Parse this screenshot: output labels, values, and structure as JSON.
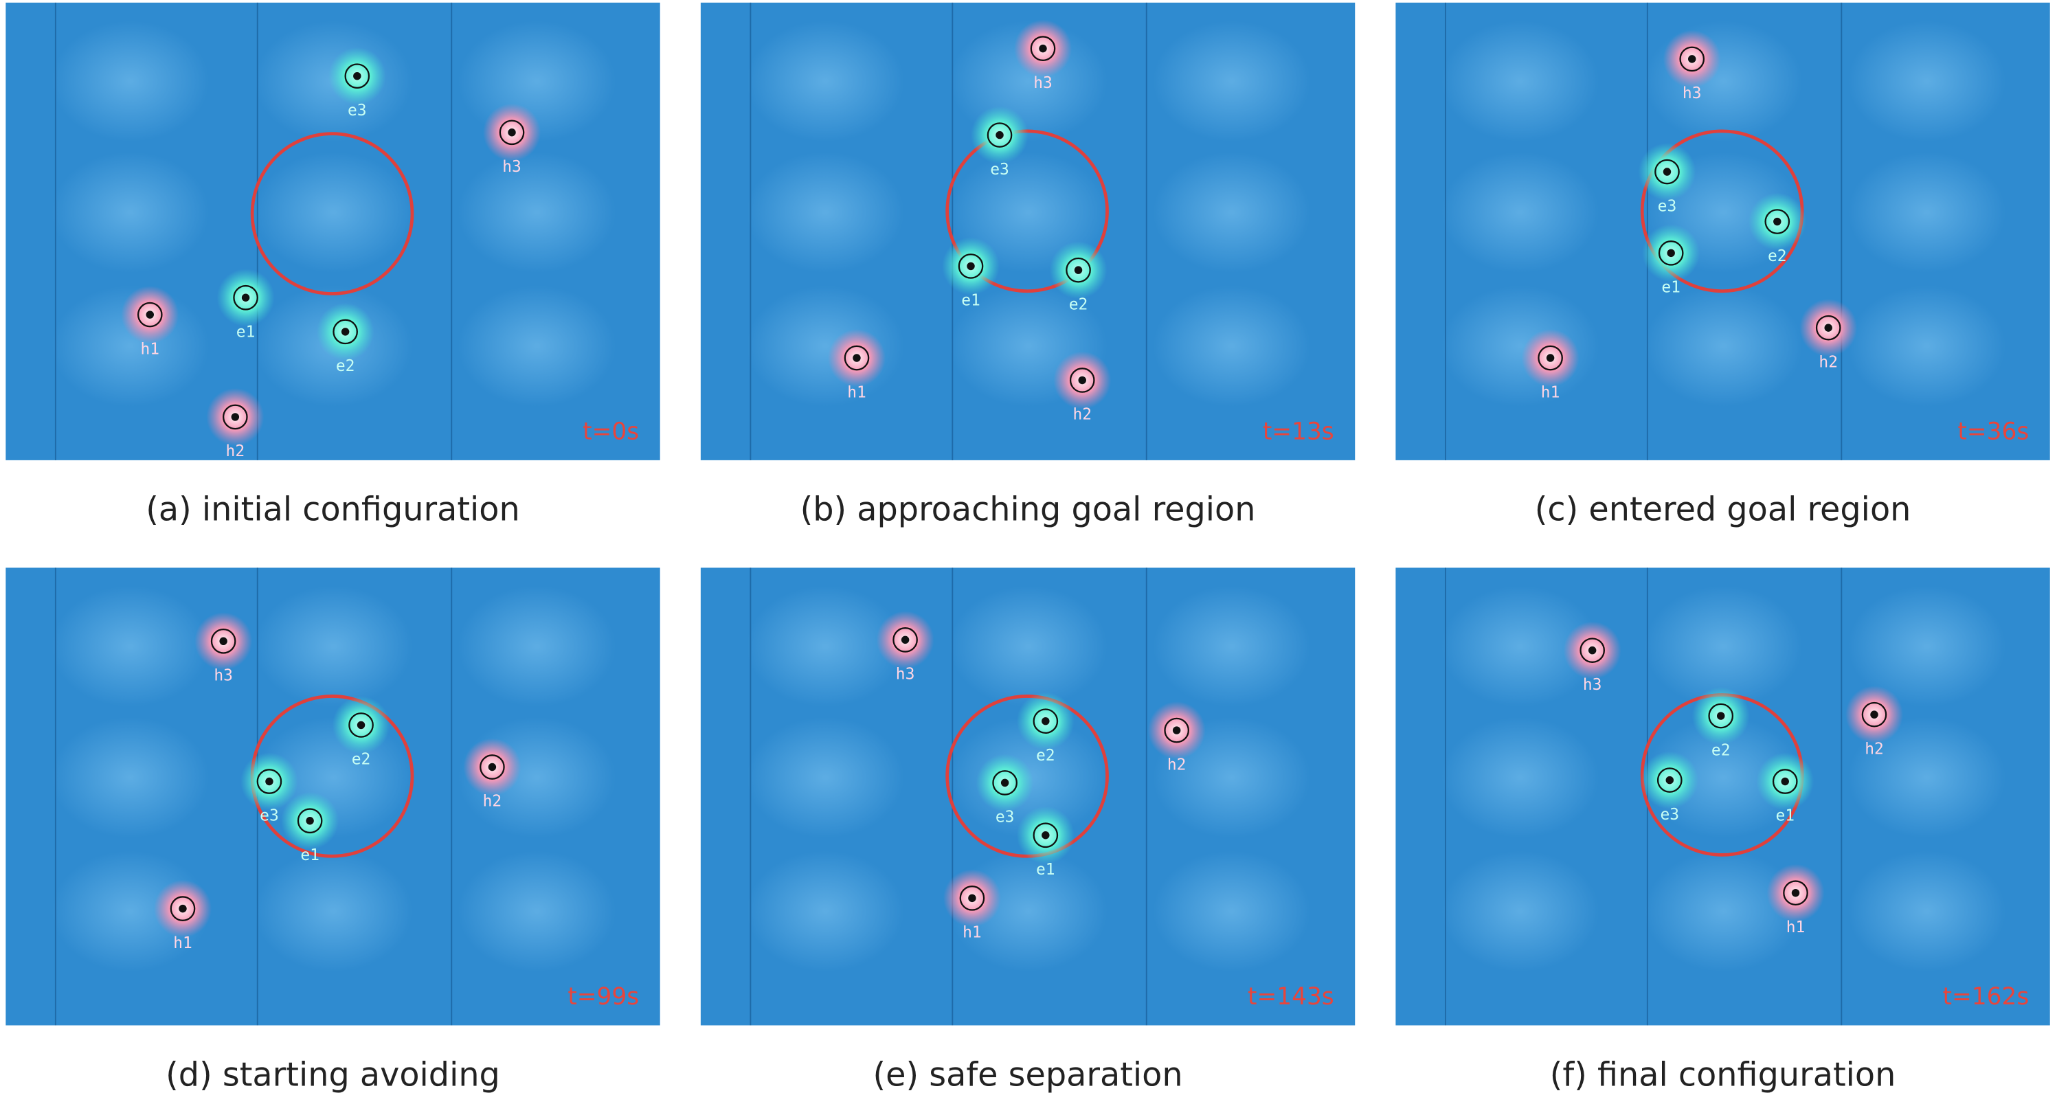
{
  "panels": [
    {
      "caption": "(a) initial configuration",
      "time": "t=0s",
      "robots": [
        "e1",
        "e2",
        "e3",
        "h1",
        "h2",
        "h3"
      ]
    },
    {
      "caption": "(b) approaching goal region",
      "time": "t=13s",
      "robots": [
        "e1",
        "e2",
        "e3",
        "h1",
        "h2",
        "h3"
      ]
    },
    {
      "caption": "(c) entered goal region",
      "time": "t=36s",
      "robots": [
        "e1",
        "e2",
        "e3",
        "h1",
        "h2",
        "h3"
      ]
    },
    {
      "caption": "(d) starting avoiding",
      "time": "t=99s",
      "robots": [
        "e1",
        "e2",
        "e3",
        "h1",
        "h2",
        "h3"
      ]
    },
    {
      "caption": "(e) safe separation",
      "time": "t=143s",
      "robots": [
        "e1",
        "e2",
        "e3",
        "h1",
        "h2",
        "h3"
      ]
    },
    {
      "caption": "(f) final configuration",
      "time": "t=162s",
      "robots": [
        "e1",
        "e2",
        "e3",
        "h1",
        "h2",
        "h3"
      ]
    }
  ]
}
